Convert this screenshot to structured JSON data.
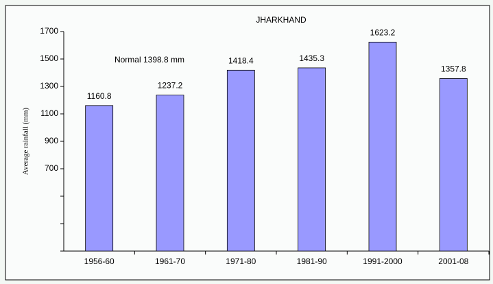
{
  "chart_data": {
    "type": "bar",
    "title": "JHARKHAND",
    "y_label": "Average rainfall (mm)",
    "annotation": "Normal 1398.8 mm",
    "categories": [
      "1956-60",
      "1961-70",
      "1971-80",
      "1981-90",
      "1991-2000",
      "2001-08"
    ],
    "values": [
      1160.8,
      1237.2,
      1418.4,
      1435.3,
      1623.2,
      1357.8
    ],
    "color": "#9999ff",
    "ylim": [
      100,
      1700
    ],
    "yticks": [
      700,
      900,
      1100,
      1300,
      1500,
      1700
    ],
    "minor_yticks": [
      100,
      300,
      500
    ],
    "data_labels": true
  }
}
